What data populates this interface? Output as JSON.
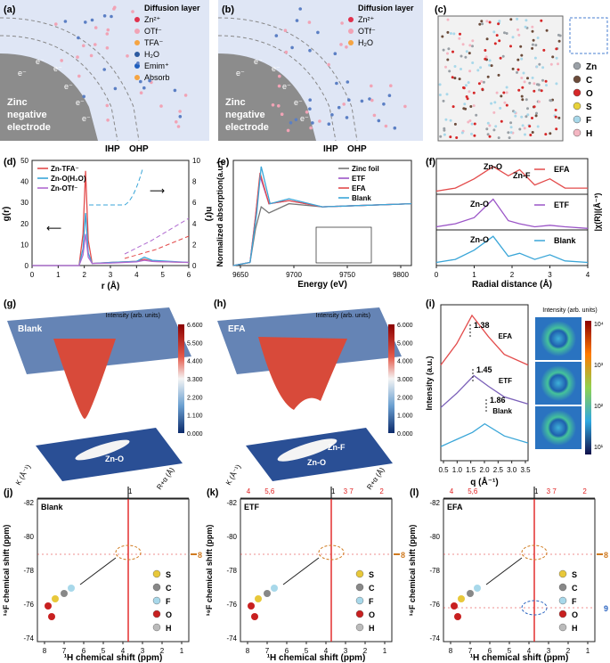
{
  "panels": {
    "a": {
      "label": "(a)",
      "legend": [
        "Diffusion layer",
        "Zn²⁺",
        "OTf⁻",
        "TFA⁻",
        "H₂O",
        "Emim⁺",
        "Absorb"
      ],
      "electrode": [
        "Zinc",
        "negative",
        "electrode"
      ],
      "ihp": "IHP",
      "ohp": "OHP",
      "electron": "e⁻"
    },
    "b": {
      "label": "(b)",
      "legend": [
        "Diffusion layer",
        "Zn²⁺",
        "OTf⁻",
        "H₂O"
      ],
      "electrode": [
        "Zinc",
        "negative",
        "electrode"
      ],
      "ihp": "IHP",
      "ohp": "OHP",
      "electron": "e⁻"
    },
    "c": {
      "label": "(c)",
      "elements": [
        "Zn",
        "C",
        "O",
        "S",
        "F",
        "H"
      ],
      "colors": [
        "#9aa0a6",
        "#6b4b3a",
        "#d62728",
        "#e8d23a",
        "#a8d8ea",
        "#f4b6c2"
      ]
    },
    "d": {
      "label": "(d)",
      "xlabel": "r (Å)",
      "ylabel_left": "g(r)",
      "ylabel_right": "n(r)",
      "xticks": [
        "0",
        "1",
        "2",
        "3",
        "4",
        "5",
        "6"
      ],
      "yticks_left": [
        "0",
        "10",
        "20",
        "30",
        "40",
        "50"
      ],
      "yticks_right": [
        "0",
        "2",
        "4",
        "6",
        "8",
        "10"
      ],
      "legend": [
        "Zn-TFA⁻",
        "Zn-O(H₂O)",
        "Zn-OTf⁻"
      ]
    },
    "e": {
      "label": "(e)",
      "xlabel": "Energy (eV)",
      "ylabel": "Normalized absorption(a.u.)",
      "xticks": [
        "9650",
        "9700",
        "9750",
        "9800"
      ],
      "legend": [
        "Zinc foil",
        "ETF",
        "EFA",
        "Blank"
      ]
    },
    "f": {
      "label": "(f)",
      "xlabel": "Radial distance (Å)",
      "ylabel": "|χ(R)|(Å⁻³)",
      "xticks": [
        "0",
        "1",
        "2",
        "3",
        "4"
      ],
      "series": [
        "EFA",
        "ETF",
        "Blank"
      ],
      "peaks": [
        "Zn-O",
        "Zn-F",
        "Zn-O",
        "Zn-O"
      ]
    },
    "g": {
      "label": "(g)",
      "name": "Blank",
      "colorbar_title": "Intensity (arb. units)",
      "colorbar_ticks": [
        "6.600",
        "5.500",
        "4.400",
        "3.300",
        "2.200",
        "1.100",
        "0.000"
      ],
      "axis_k": "K (Å⁻¹)",
      "axis_r": "R+α (Å)",
      "peak": "Zn-O"
    },
    "h": {
      "label": "(h)",
      "name": "EFA",
      "colorbar_title": "Intensity (arb. units)",
      "colorbar_ticks": [
        "6.000",
        "5.000",
        "4.000",
        "3.000",
        "2.000",
        "1.000",
        "0.000"
      ],
      "axis_k": "K (Å⁻¹)",
      "axis_r": "R+α (Å)",
      "peaks": [
        "Zn-F",
        "Zn-O"
      ]
    },
    "i": {
      "label": "(i)",
      "xlabel": "q (Å⁻¹)",
      "ylabel": "Intensity (a.u.)",
      "xticks": [
        "0.5",
        "1.0",
        "1.5",
        "2.0",
        "2.5",
        "3.0",
        "3.5"
      ],
      "series": [
        "EFA",
        "ETF",
        "Blank"
      ],
      "peaks": [
        "1.38",
        "1.45",
        "1.86"
      ],
      "colorbar_title": "Intensity (arb. units)",
      "colorbar_ticks": [
        "10⁴",
        "10³",
        "10²",
        "10¹"
      ]
    },
    "nmr": {
      "xlabel": "¹H chemical shift (ppm)",
      "ylabel": "¹⁹F chemical shift (ppm)",
      "xticks": [
        "8",
        "7",
        "6",
        "5",
        "4",
        "3",
        "2",
        "1"
      ],
      "yticks": [
        "-82",
        "-80",
        "-78",
        "-76",
        "-74"
      ],
      "legend": [
        "S",
        "C",
        "F",
        "O",
        "H"
      ]
    },
    "j": {
      "label": "(j)",
      "name": "Blank",
      "top_peak": "1",
      "side_peak": "8"
    },
    "k": {
      "label": "(k)",
      "name": "ETF",
      "top_peaks": [
        "4",
        "5,6",
        "1",
        "3",
        "7",
        "2"
      ],
      "side_peak": "8"
    },
    "l": {
      "label": "(l)",
      "name": "EFA",
      "top_peaks": [
        "4",
        "5,6",
        "1",
        "3",
        "7",
        "2"
      ],
      "side_peaks": [
        "8",
        "9"
      ]
    }
  },
  "chart_data": [
    {
      "type": "line",
      "panel": "d",
      "title": "",
      "xlabel": "r (Å)",
      "ylabel": "g(r)",
      "xlim": [
        0,
        6
      ],
      "ylim": [
        0,
        50
      ],
      "series": [
        {
          "name": "Zn-TFA⁻",
          "x": [
            0,
            1.8,
            1.95,
            2.05,
            2.15,
            2.3,
            3,
            4,
            4.3,
            4.6,
            6
          ],
          "y": [
            0,
            0,
            15,
            45,
            12,
            1,
            1.5,
            2,
            3,
            2,
            1.5
          ]
        },
        {
          "name": "Zn-O(H₂O)",
          "x": [
            0,
            1.8,
            1.95,
            2.05,
            2.15,
            2.3,
            3,
            4,
            4.3,
            4.6,
            6
          ],
          "y": [
            0,
            0,
            8,
            25,
            6,
            1,
            1.5,
            2,
            4,
            2.5,
            1.5
          ]
        },
        {
          "name": "Zn-OTf⁻",
          "x": [
            0,
            1.8,
            1.95,
            2.05,
            2.15,
            2.3,
            3,
            4,
            4.3,
            4.6,
            6
          ],
          "y": [
            0,
            0,
            5,
            15,
            4,
            1,
            1.2,
            1.8,
            2.5,
            2,
            1.5
          ]
        }
      ]
    },
    {
      "type": "line",
      "panel": "e",
      "xlabel": "Energy (eV)",
      "ylabel": "Normalized absorption(a.u.)",
      "xlim": [
        9640,
        9800
      ],
      "series": [
        {
          "name": "Zinc foil",
          "x": [
            9640,
            9655,
            9660,
            9665,
            9672,
            9690,
            9720,
            9800
          ],
          "y": [
            0,
            0.05,
            0.6,
            0.95,
            0.85,
            1.0,
            0.95,
            1.0
          ]
        },
        {
          "name": "ETF",
          "x": [
            9640,
            9655,
            9660,
            9664,
            9672,
            9690,
            9720,
            9800
          ],
          "y": [
            0,
            0.05,
            0.8,
            1.45,
            1.0,
            1.05,
            0.95,
            1.0
          ]
        },
        {
          "name": "EFA",
          "x": [
            9640,
            9655,
            9660,
            9664,
            9672,
            9690,
            9720,
            9800
          ],
          "y": [
            0,
            0.05,
            0.8,
            1.5,
            1.0,
            1.05,
            0.95,
            1.0
          ]
        },
        {
          "name": "Blank",
          "x": [
            9640,
            9655,
            9661,
            9665,
            9673,
            9690,
            9720,
            9800
          ],
          "y": [
            0,
            0.05,
            0.85,
            1.6,
            1.0,
            1.08,
            0.95,
            1.0
          ]
        }
      ]
    },
    {
      "type": "line",
      "panel": "f",
      "xlabel": "Radial distance (Å)",
      "ylabel": "|χ(R)|(Å⁻³)",
      "xlim": [
        0,
        4
      ],
      "series": [
        {
          "name": "EFA",
          "x": [
            0,
            0.5,
            1,
            1.5,
            1.9,
            2.2,
            2.6,
            3,
            3.4,
            4
          ],
          "y": [
            0.1,
            0.2,
            0.5,
            0.9,
            0.6,
            0.8,
            0.3,
            0.5,
            0.2,
            0.2
          ]
        },
        {
          "name": "ETF",
          "x": [
            0,
            0.5,
            1,
            1.5,
            1.9,
            2.2,
            2.6,
            3,
            3.4,
            4
          ],
          "y": [
            0.1,
            0.2,
            0.4,
            1.0,
            0.3,
            0.2,
            0.1,
            0.15,
            0.1,
            0.05
          ]
        },
        {
          "name": "Blank",
          "x": [
            0,
            0.5,
            1,
            1.5,
            1.9,
            2.2,
            2.6,
            3,
            3.4,
            4
          ],
          "y": [
            0.1,
            0.2,
            0.5,
            0.95,
            0.3,
            0.4,
            0.2,
            0.35,
            0.15,
            0.1
          ]
        }
      ]
    },
    {
      "type": "line",
      "panel": "i",
      "xlabel": "q (Å⁻¹)",
      "ylabel": "Intensity (a.u.)",
      "xlim": [
        0.2,
        3.5
      ],
      "series": [
        {
          "name": "EFA",
          "x": [
            0.2,
            0.8,
            1.38,
            2,
            2.6,
            3.5
          ],
          "y": [
            0.3,
            0.6,
            1.0,
            0.7,
            0.45,
            0.3
          ],
          "peak": 1.38
        },
        {
          "name": "ETF",
          "x": [
            0.2,
            0.8,
            1.45,
            2,
            2.6,
            3.5
          ],
          "y": [
            0.2,
            0.4,
            0.65,
            0.5,
            0.35,
            0.25
          ],
          "peak": 1.45
        },
        {
          "name": "Blank",
          "x": [
            0.2,
            0.8,
            1.4,
            1.86,
            2.6,
            3.5
          ],
          "y": [
            0.1,
            0.2,
            0.3,
            0.42,
            0.25,
            0.15
          ],
          "peak": 1.86
        }
      ]
    }
  ]
}
